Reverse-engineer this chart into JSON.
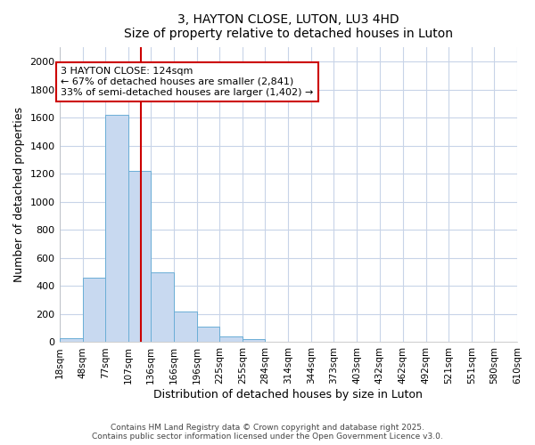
{
  "title_line1": "3, HAYTON CLOSE, LUTON, LU3 4HD",
  "title_line2": "Size of property relative to detached houses in Luton",
  "xlabel": "Distribution of detached houses by size in Luton",
  "ylabel": "Number of detached properties",
  "bar_edges": [
    18,
    48,
    77,
    107,
    136,
    166,
    196,
    225,
    255,
    284,
    314,
    344,
    373,
    403,
    432,
    462,
    492,
    521,
    551,
    580,
    610
  ],
  "bar_heights": [
    30,
    460,
    1620,
    1220,
    500,
    220,
    110,
    40,
    20,
    0,
    0,
    0,
    0,
    0,
    0,
    0,
    0,
    0,
    0,
    0
  ],
  "bar_color": "#c8d9f0",
  "bar_edge_color": "#6baed6",
  "property_size": 124,
  "vline_color": "#cc0000",
  "annotation_text": "3 HAYTON CLOSE: 124sqm\n← 67% of detached houses are smaller (2,841)\n33% of semi-detached houses are larger (1,402) →",
  "annotation_box_color": "#ffffff",
  "annotation_box_edge_color": "#cc0000",
  "ylim": [
    0,
    2100
  ],
  "yticks": [
    0,
    200,
    400,
    600,
    800,
    1000,
    1200,
    1400,
    1600,
    1800,
    2000
  ],
  "tick_labels": [
    "18sqm",
    "48sqm",
    "77sqm",
    "107sqm",
    "136sqm",
    "166sqm",
    "196sqm",
    "225sqm",
    "255sqm",
    "284sqm",
    "314sqm",
    "344sqm",
    "373sqm",
    "403sqm",
    "432sqm",
    "462sqm",
    "492sqm",
    "521sqm",
    "551sqm",
    "580sqm",
    "610sqm"
  ],
  "footer_line1": "Contains HM Land Registry data © Crown copyright and database right 2025.",
  "footer_line2": "Contains public sector information licensed under the Open Government Licence v3.0.",
  "bg_color": "#ffffff",
  "plot_bg_color": "#ffffff",
  "grid_color": "#c8d4e8",
  "title_fontsize": 11,
  "subtitle_fontsize": 10
}
